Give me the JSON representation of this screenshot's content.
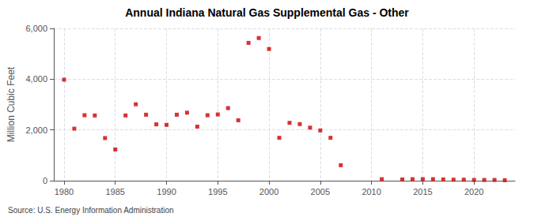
{
  "chart_data": {
    "type": "scatter",
    "title": "Annual Indiana Natural Gas Supplemental Gas - Other",
    "ylabel": "Million Cubic Feet",
    "annotations": [
      "Source: U.S. Energy Information Administration"
    ],
    "x": [
      1980,
      1981,
      1982,
      1983,
      1984,
      1985,
      1986,
      1987,
      1988,
      1989,
      1990,
      1991,
      1992,
      1993,
      1994,
      1995,
      1996,
      1997,
      1998,
      1999,
      2000,
      2001,
      2002,
      2003,
      2004,
      2005,
      2006,
      2007,
      2011,
      2013,
      2014,
      2015,
      2016,
      2017,
      2018,
      2019,
      2020,
      2021,
      2022,
      2023
    ],
    "values": [
      3980,
      2050,
      2580,
      2570,
      1680,
      1230,
      2570,
      3010,
      2600,
      2220,
      2200,
      2600,
      2680,
      2130,
      2580,
      2610,
      2860,
      2380,
      5430,
      5620,
      5190,
      1690,
      2280,
      2230,
      2090,
      1980,
      1690,
      610,
      60,
      50,
      60,
      60,
      60,
      50,
      40,
      40,
      30,
      30,
      30,
      20
    ],
    "color": "#cc0000",
    "marker": "square",
    "xlim": [
      1979,
      2024
    ],
    "xticks": [
      1980,
      1985,
      1990,
      1995,
      2000,
      2005,
      2010,
      2015,
      2020
    ],
    "ylim": [
      0,
      6000
    ],
    "yticks": [
      0,
      {
        "value": 2000,
        "label": "2,000"
      },
      {
        "value": 4000,
        "label": "4,000"
      },
      {
        "value": 6000,
        "label": "6,000"
      }
    ],
    "grid": true
  }
}
